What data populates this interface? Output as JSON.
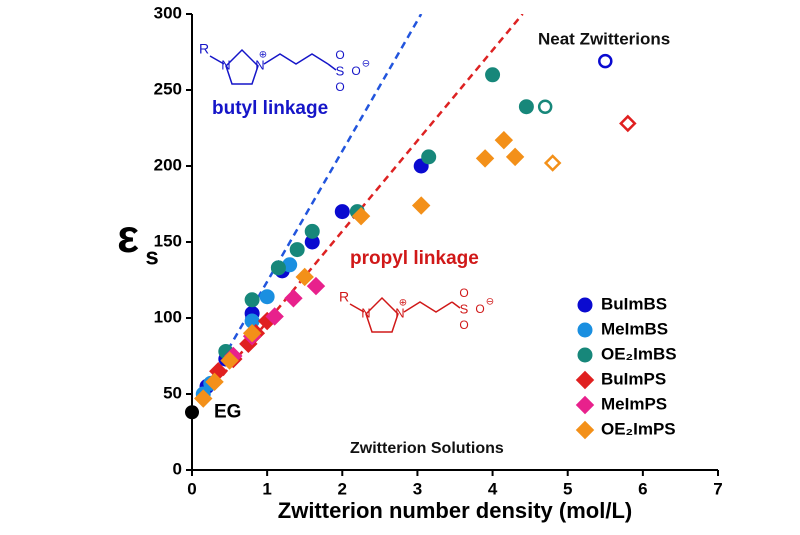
{
  "chart_data": {
    "type": "scatter",
    "xlabel": "Zwitterion number density (mol/L)",
    "ylabel": "ε",
    "ylabel_sub": "s",
    "xlim": [
      0,
      7
    ],
    "ylim": [
      0,
      300
    ],
    "xticks": [
      0,
      1,
      2,
      3,
      4,
      5,
      6,
      7
    ],
    "yticks": [
      0,
      50,
      100,
      150,
      200,
      250,
      300
    ],
    "legend": "lower right",
    "series": [
      {
        "name": "BuImBS",
        "color": "#0a0ad0",
        "marker": "circle",
        "x": [
          0.2,
          0.45,
          0.8,
          1.2,
          1.6,
          2.0,
          3.05
        ],
        "values": [
          55,
          73,
          103,
          131,
          150,
          170,
          200
        ],
        "neat": {
          "x": [
            5.5
          ],
          "values": [
            269
          ]
        }
      },
      {
        "name": "MeImBS",
        "color": "#1a8fe0",
        "marker": "circle",
        "x": [
          0.15,
          0.25,
          0.8,
          1.0,
          1.15,
          1.3
        ],
        "values": [
          50,
          57,
          98,
          114,
          133,
          135
        ]
      },
      {
        "name": "OE₂ImBS",
        "color": "#17877a",
        "marker": "circle",
        "x": [
          0.45,
          0.8,
          1.15,
          1.4,
          1.6,
          2.2,
          3.15,
          4.0,
          4.45
        ],
        "values": [
          78,
          112,
          133,
          145,
          157,
          170,
          206,
          260,
          239
        ],
        "neat": {
          "x": [
            4.7
          ],
          "values": [
            239
          ]
        }
      },
      {
        "name": "BuImPS",
        "color": "#e02020",
        "marker": "diamond",
        "x": [
          0.35,
          0.55,
          0.75,
          0.85,
          1.0
        ],
        "values": [
          65,
          73,
          83,
          90,
          98
        ],
        "neat": {
          "x": [
            5.8
          ],
          "values": [
            228
          ]
        }
      },
      {
        "name": "MeImPS",
        "color": "#e8218c",
        "marker": "diamond",
        "x": [
          0.55,
          0.8,
          1.1,
          1.35,
          1.65
        ],
        "values": [
          75,
          88,
          101,
          113,
          121
        ]
      },
      {
        "name": "OE₂ImPS",
        "color": "#f39019",
        "marker": "diamond",
        "x": [
          0.15,
          0.3,
          0.5,
          0.8,
          1.5,
          2.25,
          3.05,
          3.9,
          4.15,
          4.3
        ],
        "values": [
          47,
          58,
          72,
          90,
          127,
          167,
          174,
          205,
          217,
          206
        ],
        "neat": {
          "x": [
            4.8
          ],
          "values": [
            202
          ]
        }
      }
    ],
    "reference": {
      "label": "EG",
      "x": 0,
      "value": 38,
      "color": "#000000"
    },
    "fits": [
      {
        "color": "#2255dd",
        "x": [
          0,
          3.05
        ],
        "values": [
          38,
          300
        ]
      },
      {
        "color": "#dd2222",
        "x": [
          0,
          4.4
        ],
        "values": [
          38,
          300
        ]
      }
    ],
    "annotations": [
      {
        "text": "butyl linkage",
        "color": "#1515c8"
      },
      {
        "text": "propyl linkage",
        "color": "#d01818"
      },
      {
        "text": "Neat Zwitterions",
        "color": "#111111"
      },
      {
        "text": "Zwitterion Solutions",
        "color": "#111111"
      }
    ],
    "structures": [
      {
        "color": "#1515c8",
        "labels": [
          "R",
          "N",
          "N",
          "⊕",
          "S",
          "O",
          "O",
          "O",
          "⊖"
        ]
      },
      {
        "color": "#d01818",
        "labels": [
          "R",
          "N",
          "N",
          "⊕",
          "S",
          "O",
          "O",
          "O",
          "⊖"
        ]
      }
    ]
  }
}
